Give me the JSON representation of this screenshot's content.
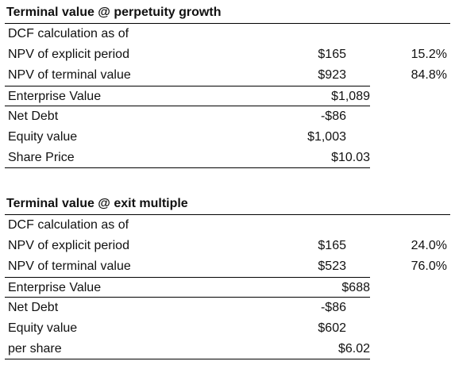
{
  "perpetuity": {
    "title": "Terminal value @ perpetuity growth",
    "rows": [
      {
        "label": "DCF calculation as of",
        "value": "",
        "pct": ""
      },
      {
        "label": "NPV of explicit period",
        "value": "$165",
        "pct": "15.2%"
      },
      {
        "label": "NPV of terminal value",
        "value": "$923",
        "pct": "84.8%"
      },
      {
        "label": "Enterprise Value",
        "value": "$1,089",
        "pct": ""
      },
      {
        "label": "Net Debt",
        "value": "-$86",
        "pct": ""
      },
      {
        "label": "Equity value",
        "value": "$1,003",
        "pct": ""
      },
      {
        "label": "Share Price",
        "value": "$10.03",
        "pct": ""
      }
    ]
  },
  "exit_multiple": {
    "title": "Terminal value @ exit multiple",
    "rows": [
      {
        "label": "DCF calculation as of",
        "value": "",
        "pct": ""
      },
      {
        "label": "NPV of explicit period",
        "value": "$165",
        "pct": "24.0%"
      },
      {
        "label": "NPV of terminal value",
        "value": "$523",
        "pct": "76.0%"
      },
      {
        "label": "Enterprise Value",
        "value": "$688",
        "pct": ""
      },
      {
        "label": "Net Debt",
        "value": "-$86",
        "pct": ""
      },
      {
        "label": "Equity value",
        "value": "$602",
        "pct": ""
      },
      {
        "label": "per share",
        "value": "$6.02",
        "pct": ""
      }
    ]
  }
}
